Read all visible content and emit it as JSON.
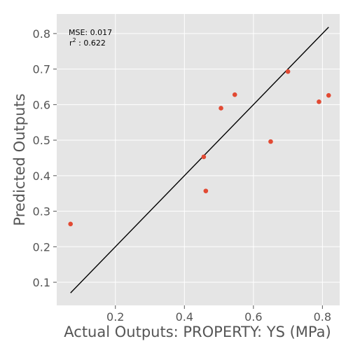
{
  "chart_data": {
    "type": "scatter",
    "xlabel": "Actual Outputs: PROPERTY: YS (MPa)",
    "ylabel": "Predicted Outputs",
    "xlim": [
      0.03,
      0.85
    ],
    "ylim": [
      0.035,
      0.855
    ],
    "xticks": [
      0.2,
      0.4,
      0.6,
      0.8
    ],
    "yticks": [
      0.1,
      0.2,
      0.3,
      0.4,
      0.5,
      0.6,
      0.7,
      0.8
    ],
    "x_tick_labels": [
      "0.2",
      "0.4",
      "0.6",
      "0.8"
    ],
    "y_tick_labels": [
      "0.1",
      "0.2",
      "0.3",
      "0.4",
      "0.5",
      "0.6",
      "0.7",
      "0.8"
    ],
    "grid": true,
    "background": "#e5e5e5",
    "point_color": "#e24a33",
    "points": [
      {
        "x": 0.07,
        "y": 0.264
      },
      {
        "x": 0.456,
        "y": 0.453
      },
      {
        "x": 0.462,
        "y": 0.357
      },
      {
        "x": 0.506,
        "y": 0.59
      },
      {
        "x": 0.546,
        "y": 0.628
      },
      {
        "x": 0.65,
        "y": 0.496
      },
      {
        "x": 0.7,
        "y": 0.693
      },
      {
        "x": 0.79,
        "y": 0.608
      },
      {
        "x": 0.818,
        "y": 0.626
      }
    ],
    "reference_line": {
      "from": [
        0.07,
        0.07
      ],
      "to": [
        0.818,
        0.818
      ],
      "color": "#000000"
    },
    "annotations": {
      "mse": "MSE: 0.017",
      "r2_symbol": "r",
      "r2_exp": "2",
      "r2_value": " : 0.622"
    }
  }
}
